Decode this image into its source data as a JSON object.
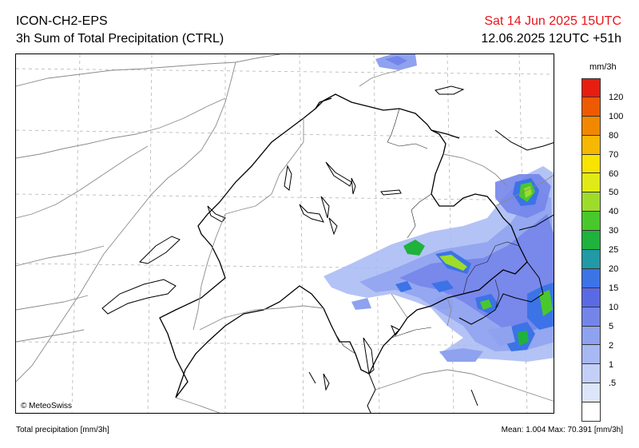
{
  "header": {
    "model": "ICON-CH2-EPS",
    "product": "3h Sum of Total Precipitation (CTRL)",
    "valid_time": "Sat 14 Jun 2025 15UTC",
    "run_time": "12.06.2025 12UTC +51h"
  },
  "map": {
    "copyright": "© MeteoSwiss"
  },
  "legend": {
    "unit": "mm/3h",
    "levels": [
      ".5",
      "1",
      "2",
      "5",
      "10",
      "15",
      "20",
      "25",
      "30",
      "40",
      "50",
      "60",
      "70",
      "80",
      "100",
      "120"
    ],
    "colors": [
      "#ffffff",
      "#dde5fb",
      "#c3cff7",
      "#a7b8f3",
      "#8ea2ef",
      "#7485ea",
      "#5a6ae4",
      "#3c73e6",
      "#1f9aa6",
      "#1fb23c",
      "#49c82c",
      "#9edc2a",
      "#e0ea16",
      "#f8e400",
      "#f6b800",
      "#f28800",
      "#ee5a00",
      "#e61e10"
    ]
  },
  "footer": {
    "variable": "Total precipitation [mm/3h]",
    "mean_label": "Mean:",
    "mean_value": "1.004",
    "max_label": "Max:",
    "max_value": "70.391",
    "max_unit": "[mm/3h]"
  }
}
